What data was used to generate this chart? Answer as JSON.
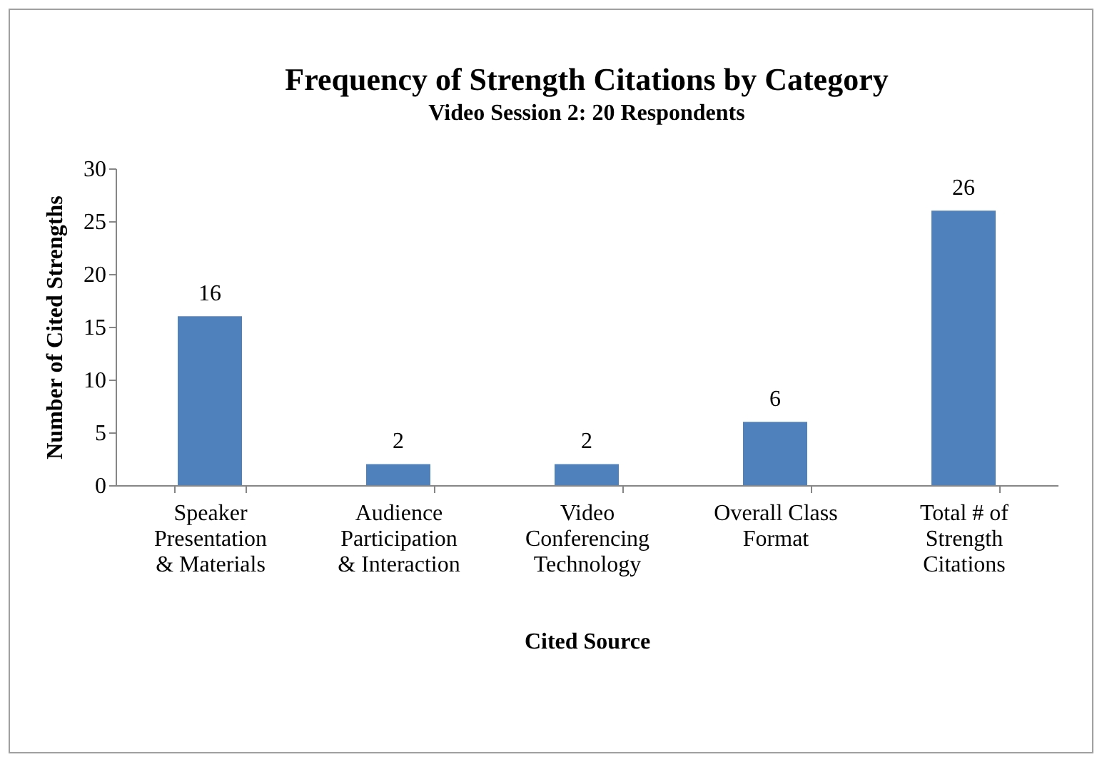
{
  "chart_data": {
    "type": "bar",
    "title": "Frequency of Strength Citations by Category",
    "subtitle": "Video Session 2: 20 Respondents",
    "xlabel": "Cited Source",
    "ylabel": "Number of Cited Strengths",
    "categories": [
      "Speaker Presentation & Materials",
      "Audience Participation & Interaction",
      "Video Conferencing Technology",
      "Overall Class Format",
      "Total # of Strength Citations"
    ],
    "values": [
      16,
      2,
      2,
      6,
      26
    ],
    "color": "#4f81bd",
    "ylim": [
      0,
      30
    ],
    "yticks": [
      0,
      5,
      10,
      15,
      20,
      25,
      30
    ],
    "grid": false,
    "data_labels": true
  }
}
